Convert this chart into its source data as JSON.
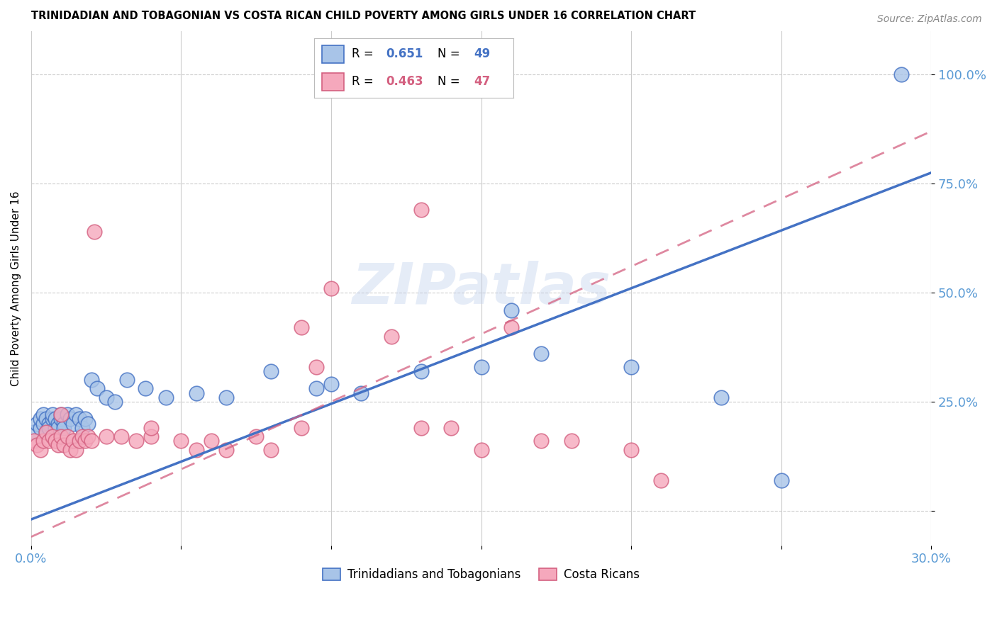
{
  "title": "TRINIDADIAN AND TOBAGONIAN VS COSTA RICAN CHILD POVERTY AMONG GIRLS UNDER 16 CORRELATION CHART",
  "source": "Source: ZipAtlas.com",
  "ylabel": "Child Poverty Among Girls Under 16",
  "xlim": [
    0.0,
    0.3
  ],
  "ylim": [
    -0.08,
    1.1
  ],
  "xticks": [
    0.0,
    0.05,
    0.1,
    0.15,
    0.2,
    0.25,
    0.3
  ],
  "xticklabels": [
    "0.0%",
    "",
    "",
    "",
    "",
    "",
    "30.0%"
  ],
  "ytick_positions": [
    0.0,
    0.25,
    0.5,
    0.75,
    1.0
  ],
  "ytick_labels": [
    "",
    "25.0%",
    "50.0%",
    "75.0%",
    "100.0%"
  ],
  "watermark": "ZIPatlas",
  "r1": "0.651",
  "n1": "49",
  "r2": "0.463",
  "n2": "47",
  "series1_label": "Trinidadians and Tobagonians",
  "series2_label": "Costa Ricans",
  "color1": "#a8c4e8",
  "color2": "#f5a8bc",
  "line_color1": "#4472c4",
  "line_color2": "#d46080",
  "axis_color": "#5b9bd5",
  "background_color": "#ffffff",
  "line1_intercept": -0.02,
  "line1_slope": 2.65,
  "line2_intercept": -0.06,
  "line2_slope": 3.1,
  "series1_x": [
    0.001,
    0.002,
    0.003,
    0.003,
    0.004,
    0.004,
    0.005,
    0.005,
    0.006,
    0.006,
    0.007,
    0.007,
    0.008,
    0.008,
    0.009,
    0.009,
    0.01,
    0.01,
    0.011,
    0.011,
    0.012,
    0.013,
    0.014,
    0.015,
    0.016,
    0.017,
    0.018,
    0.019,
    0.02,
    0.022,
    0.025,
    0.028,
    0.032,
    0.038,
    0.045,
    0.055,
    0.065,
    0.08,
    0.095,
    0.1,
    0.11,
    0.13,
    0.15,
    0.16,
    0.17,
    0.2,
    0.23,
    0.25,
    0.29
  ],
  "series1_y": [
    0.18,
    0.2,
    0.19,
    0.21,
    0.2,
    0.22,
    0.18,
    0.21,
    0.2,
    0.19,
    0.21,
    0.22,
    0.19,
    0.21,
    0.2,
    0.19,
    0.21,
    0.22,
    0.2,
    0.19,
    0.22,
    0.21,
    0.2,
    0.22,
    0.21,
    0.19,
    0.21,
    0.2,
    0.3,
    0.28,
    0.26,
    0.25,
    0.3,
    0.28,
    0.26,
    0.27,
    0.26,
    0.32,
    0.28,
    0.29,
    0.27,
    0.32,
    0.33,
    0.46,
    0.36,
    0.33,
    0.26,
    0.07,
    1.0
  ],
  "series2_x": [
    0.001,
    0.002,
    0.003,
    0.004,
    0.005,
    0.006,
    0.007,
    0.008,
    0.009,
    0.01,
    0.01,
    0.011,
    0.012,
    0.013,
    0.014,
    0.015,
    0.016,
    0.017,
    0.018,
    0.019,
    0.02,
    0.021,
    0.025,
    0.03,
    0.035,
    0.04,
    0.05,
    0.055,
    0.06,
    0.065,
    0.075,
    0.09,
    0.095,
    0.1,
    0.12,
    0.13,
    0.14,
    0.15,
    0.16,
    0.17,
    0.18,
    0.2,
    0.21,
    0.13,
    0.09,
    0.08,
    0.04
  ],
  "series2_y": [
    0.16,
    0.15,
    0.14,
    0.16,
    0.18,
    0.16,
    0.17,
    0.16,
    0.15,
    0.17,
    0.22,
    0.15,
    0.17,
    0.14,
    0.16,
    0.14,
    0.16,
    0.17,
    0.16,
    0.17,
    0.16,
    0.64,
    0.17,
    0.17,
    0.16,
    0.17,
    0.16,
    0.14,
    0.16,
    0.14,
    0.17,
    0.42,
    0.33,
    0.51,
    0.4,
    0.69,
    0.19,
    0.14,
    0.42,
    0.16,
    0.16,
    0.14,
    0.07,
    0.19,
    0.19,
    0.14,
    0.19
  ]
}
